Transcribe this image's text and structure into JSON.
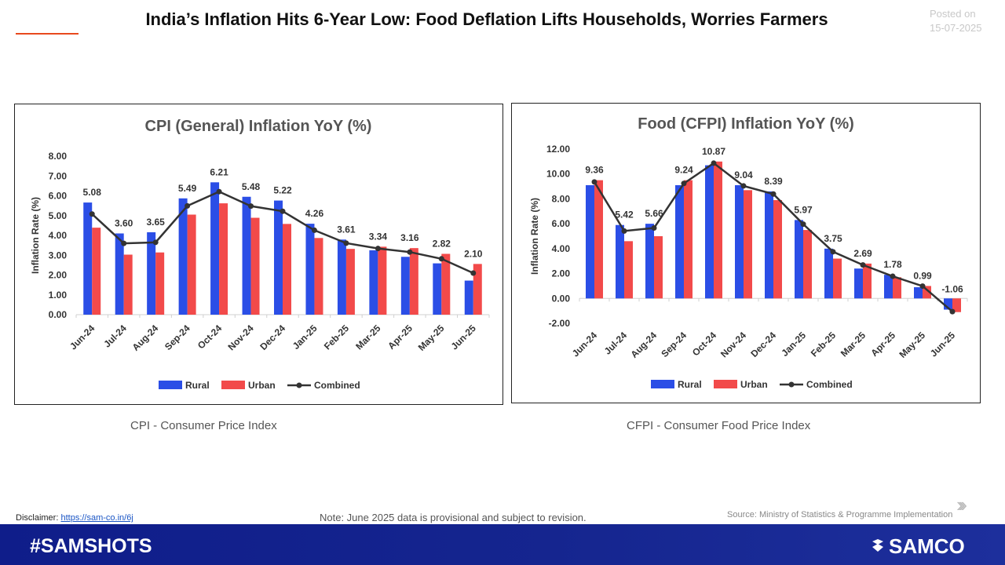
{
  "header": {
    "title": "India’s Inflation Hits 6-Year Low: Food Deflation Lifts Households, Worries Farmers",
    "posted_label": "Posted on",
    "posted_date": "15-07-2025"
  },
  "captions": {
    "cpi": "CPI - Consumer Price Index",
    "cfpi": "CFPI - Consumer Food Price Index"
  },
  "footer": {
    "disclaimer_label": "Disclaimer:",
    "disclaimer_link": "https://sam-co.in/6j",
    "note": "Note: June 2025 data is provisional and subject to revision.",
    "source": "Source: Ministry of Statistics & Programme Implementation",
    "hashtag": "#SAMSHOTS",
    "brand": "SAMCO"
  },
  "colors": {
    "rural": "#2b4ee6",
    "urban": "#f24a4a",
    "combined": "#333333",
    "accent": "#e8491d",
    "footer": "#15258f"
  },
  "chart_data": [
    {
      "type": "bar",
      "title": "CPI (General) Inflation YoY (%)",
      "ylabel": "Inflation Rate (%)",
      "xlabel": "",
      "categories": [
        "Jun-24",
        "Jul-24",
        "Aug-24",
        "Sep-24",
        "Oct-24",
        "Nov-24",
        "Dec-24",
        "Jan-25",
        "Feb-25",
        "Mar-25",
        "Apr-25",
        "May-25",
        "Jun-25"
      ],
      "ylim": [
        0,
        8
      ],
      "yticks": [
        0,
        1,
        2,
        3,
        4,
        5,
        6,
        7,
        8
      ],
      "series": [
        {
          "name": "Rural",
          "kind": "bar",
          "values": [
            5.66,
            4.1,
            4.16,
            5.87,
            6.68,
            5.95,
            5.76,
            4.59,
            3.79,
            3.25,
            2.92,
            2.59,
            1.72
          ]
        },
        {
          "name": "Urban",
          "kind": "bar",
          "values": [
            4.39,
            3.03,
            3.14,
            5.05,
            5.62,
            4.89,
            4.58,
            3.87,
            3.32,
            3.43,
            3.36,
            3.07,
            2.56
          ]
        },
        {
          "name": "Combined",
          "kind": "line",
          "values": [
            5.08,
            3.6,
            3.65,
            5.49,
            6.21,
            5.48,
            5.22,
            4.26,
            3.61,
            3.34,
            3.16,
            2.82,
            2.1
          ]
        }
      ],
      "data_labels": [
        "5.08",
        "3.60",
        "3.65",
        "5.49",
        "6.21",
        "5.48",
        "5.22",
        "4.26",
        "3.61",
        "3.34",
        "3.16",
        "2.82",
        "2.10"
      ],
      "legend": [
        "Rural",
        "Urban",
        "Combined"
      ],
      "legend_position": "bottom",
      "grid": false
    },
    {
      "type": "bar",
      "title": "Food (CFPI) Inflation YoY (%)",
      "ylabel": "Inflation Rate (%)",
      "xlabel": "",
      "categories": [
        "Jun-24",
        "Jul-24",
        "Aug-24",
        "Sep-24",
        "Oct-24",
        "Nov-24",
        "Dec-24",
        "Jan-25",
        "Feb-25",
        "Mar-25",
        "Apr-25",
        "May-25",
        "Jun-25"
      ],
      "ylim": [
        -2,
        12
      ],
      "yticks": [
        -2,
        0,
        2,
        4,
        6,
        8,
        10,
        12
      ],
      "series": [
        {
          "name": "Rural",
          "kind": "bar",
          "values": [
            9.1,
            5.9,
            6.0,
            9.1,
            10.7,
            9.1,
            8.6,
            6.3,
            4.0,
            2.4,
            1.9,
            0.9,
            -0.9
          ]
        },
        {
          "name": "Urban",
          "kind": "bar",
          "values": [
            9.5,
            4.6,
            5.0,
            9.5,
            11.0,
            8.7,
            7.9,
            5.5,
            3.2,
            2.8,
            1.7,
            1.0,
            -1.1
          ]
        },
        {
          "name": "Combined",
          "kind": "line",
          "values": [
            9.36,
            5.42,
            5.66,
            9.24,
            10.87,
            9.04,
            8.39,
            5.97,
            3.75,
            2.69,
            1.78,
            0.99,
            -1.06
          ]
        }
      ],
      "data_labels": [
        "9.36",
        "5.42",
        "5.66",
        "9.24",
        "10.87",
        "9.04",
        "8.39",
        "5.97",
        "3.75",
        "2.69",
        "1.78",
        "0.99",
        "-1.06"
      ],
      "legend": [
        "Rural",
        "Urban",
        "Combined"
      ],
      "legend_position": "bottom",
      "grid": false
    }
  ]
}
